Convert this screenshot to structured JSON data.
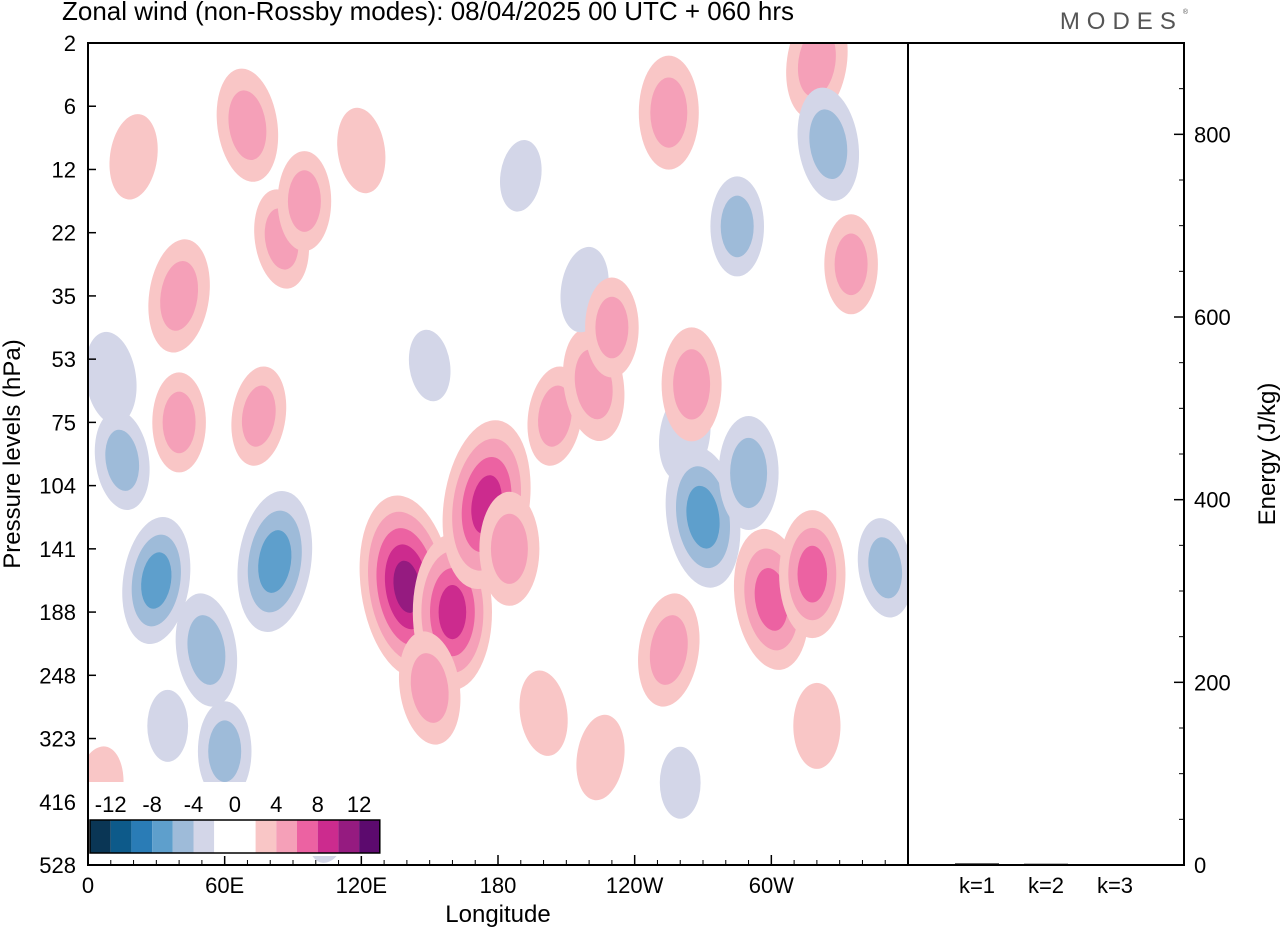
{
  "header": {
    "title": "Zonal wind (non-Rossby modes):  08/04/2025  00 UTC  + 060 hrs",
    "brand": "MODES"
  },
  "colors": {
    "palette": [
      "#0a3655",
      "#0d5a8a",
      "#2a7cb6",
      "#5e9fcc",
      "#9ebbd9",
      "#d3d6e8",
      "#ffffff",
      "#ffffff",
      "#f9c6c6",
      "#f5a0b8",
      "#ec62a2",
      "#cc2b8e",
      "#951b80",
      "#5c0a6e"
    ]
  },
  "colorbar": {
    "labels": [
      "-12",
      "-8",
      "-4",
      "0",
      "4",
      "8",
      "12"
    ]
  },
  "chart_data": [
    {
      "type": "heatmap",
      "title": "Zonal wind (non-Rossby modes):  08/04/2025  00 UTC  + 060 hrs",
      "xlabel": "Longitude",
      "ylabel": "Pressure levels (hPa)",
      "x_ticks": [
        "0",
        "60E",
        "120E",
        "180",
        "120W",
        "60W"
      ],
      "y_ticks": [
        "2",
        "6",
        "12",
        "22",
        "35",
        "53",
        "75",
        "104",
        "141",
        "188",
        "248",
        "323",
        "416",
        "528"
      ],
      "colorbar_levels": [
        -12,
        -8,
        -4,
        0,
        4,
        8,
        12
      ],
      "blobs": [
        {
          "lon": 140,
          "lev": 8.6,
          "value": 10
        },
        {
          "lon": 160,
          "lev": 9.0,
          "value": 8
        },
        {
          "lon": 175,
          "lev": 7.3,
          "value": 9
        },
        {
          "lon": 150,
          "lev": 10.2,
          "value": 5
        },
        {
          "lon": 185,
          "lev": 8.0,
          "value": 5
        },
        {
          "lon": 255,
          "lev": 9.6,
          "value": 5
        },
        {
          "lon": 300,
          "lev": 8.8,
          "value": 7
        },
        {
          "lon": 318,
          "lev": 8.4,
          "value": 6
        },
        {
          "lon": 262,
          "lev": 6.2,
          "value": -3.5
        },
        {
          "lon": 270,
          "lev": 7.5,
          "value": -7
        },
        {
          "lon": 290,
          "lev": 6.8,
          "value": -5
        },
        {
          "lon": 205,
          "lev": 5.9,
          "value": 4
        },
        {
          "lon": 222,
          "lev": 5.4,
          "value": 5
        },
        {
          "lon": 265,
          "lev": 5.4,
          "value": 5
        },
        {
          "lon": 30,
          "lev": 8.5,
          "value": -6
        },
        {
          "lon": 52,
          "lev": 9.6,
          "value": -5
        },
        {
          "lon": 60,
          "lev": 11.2,
          "value": -4
        },
        {
          "lon": 82,
          "lev": 8.2,
          "value": -7
        },
        {
          "lon": 15,
          "lev": 6.6,
          "value": -4
        },
        {
          "lon": 35,
          "lev": 10.8,
          "value": -2
        },
        {
          "lon": 105,
          "lev": 12.4,
          "value": -2
        },
        {
          "lon": 70,
          "lev": 1.3,
          "value": 5
        },
        {
          "lon": 255,
          "lev": 1.1,
          "value": 5
        },
        {
          "lon": 320,
          "lev": 0.3,
          "value": 5
        },
        {
          "lon": 325,
          "lev": 1.6,
          "value": -5
        },
        {
          "lon": 285,
          "lev": 2.9,
          "value": -4
        },
        {
          "lon": 40,
          "lev": 4.0,
          "value": 5
        },
        {
          "lon": 85,
          "lev": 3.1,
          "value": 4
        },
        {
          "lon": 95,
          "lev": 2.5,
          "value": 4
        },
        {
          "lon": 218,
          "lev": 3.9,
          "value": -3
        },
        {
          "lon": 10,
          "lev": 5.3,
          "value": -3.5
        },
        {
          "lon": 40,
          "lev": 6.0,
          "value": 4
        },
        {
          "lon": 75,
          "lev": 5.9,
          "value": 4
        },
        {
          "lon": 150,
          "lev": 5.1,
          "value": -2
        },
        {
          "lon": 230,
          "lev": 4.5,
          "value": 4
        },
        {
          "lon": 20,
          "lev": 1.8,
          "value": 3
        },
        {
          "lon": 350,
          "lev": 8.3,
          "value": -4
        },
        {
          "lon": 320,
          "lev": 10.8,
          "value": 3
        },
        {
          "lon": 225,
          "lev": 11.3,
          "value": 3
        },
        {
          "lon": 200,
          "lev": 10.6,
          "value": 3
        },
        {
          "lon": 260,
          "lev": 11.7,
          "value": -2
        },
        {
          "lon": 190,
          "lev": 2.1,
          "value": -2
        },
        {
          "lon": 120,
          "lev": 1.7,
          "value": 3
        },
        {
          "lon": 335,
          "lev": 3.5,
          "value": 4
        },
        {
          "lon": 5,
          "lev": 11.8,
          "value": 3
        }
      ]
    },
    {
      "type": "bar",
      "ylabel": "Energy (J/kg)",
      "categories": [
        "k=1",
        "k=2",
        "k=3"
      ],
      "values": [
        2,
        1.5,
        1
      ],
      "ylim": [
        0,
        900
      ],
      "y_ticks": [
        0,
        200,
        400,
        600,
        800
      ]
    }
  ]
}
